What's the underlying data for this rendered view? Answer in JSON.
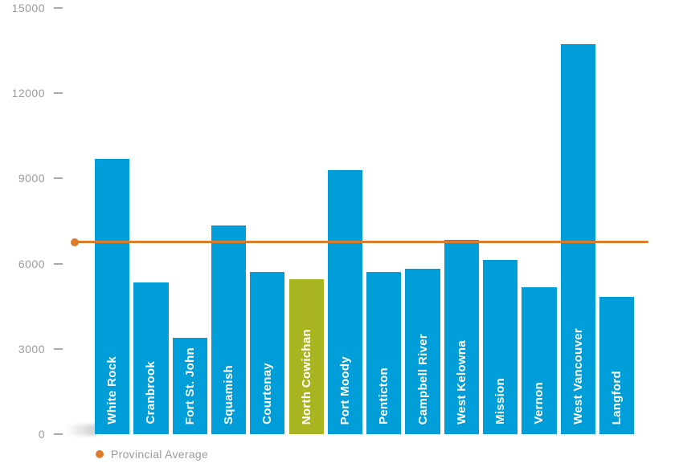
{
  "chart_data": {
    "type": "bar",
    "title": "",
    "categories": [
      "White Rock",
      "Cranbrook",
      "Fort St. John",
      "Squamish",
      "Courtenay",
      "North Cowichan",
      "Port Moody",
      "Penticton",
      "Campbell River",
      "West Kelowna",
      "Mission",
      "Vernon",
      "West Vancouver",
      "Langford"
    ],
    "values": [
      9680,
      5330,
      3390,
      7360,
      5710,
      5440,
      9300,
      5700,
      5830,
      6840,
      6130,
      5180,
      13730,
      4830
    ],
    "highlight_category": "North Cowichan",
    "bar_color": "#009ED9",
    "highlight_color": "#A9B520",
    "label_text_color": "#FFFFFF",
    "average_line": {
      "label": "Provincial Average",
      "value": 6780,
      "color": "#DD7C2B"
    },
    "xlabel": "",
    "ylabel": "",
    "ylim": [
      0,
      15000
    ],
    "yticks": [
      0,
      3000,
      6000,
      9000,
      12000,
      15000
    ],
    "grid": false,
    "legend_position": "bottom-left",
    "axis_text_color": "#9b9b9b"
  },
  "legend": {
    "provincial_average_label": "Provincial Average"
  }
}
